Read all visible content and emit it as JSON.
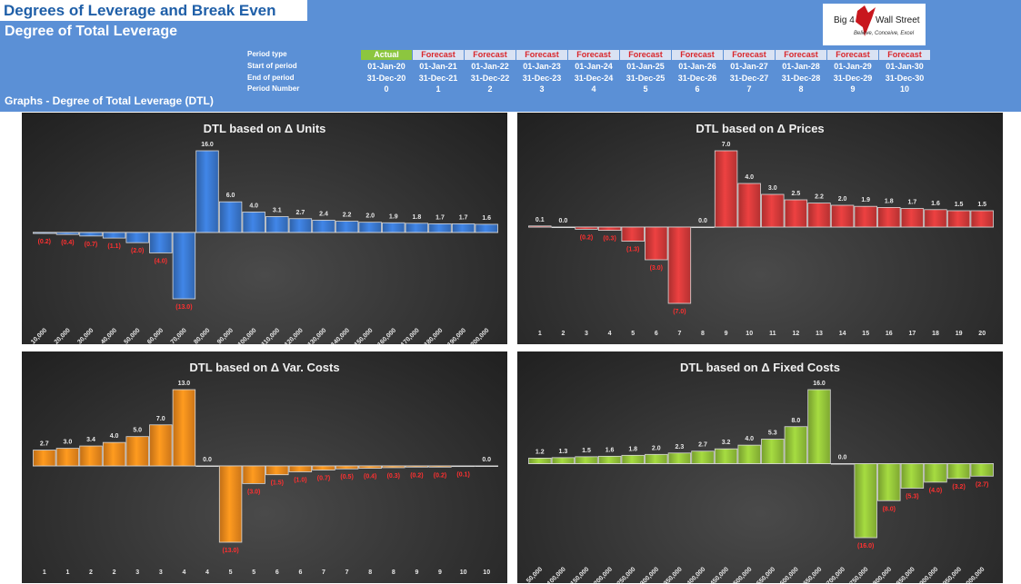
{
  "header": {
    "title": "Degrees of Leverage and Break Even",
    "subtitle": "Degree of Total Leverage",
    "section": "Graphs - Degree of Total Leverage (DTL)",
    "logo_left": "Big 4",
    "logo_right": "Wall Street",
    "logo_tagline": "Believe, Conceive, Excel"
  },
  "periods": {
    "labels": {
      "type": "Period type",
      "start": "Start of period",
      "end": "End of period",
      "number": "Period Number"
    },
    "types": [
      "Actual",
      "Forecast",
      "Forecast",
      "Forecast",
      "Forecast",
      "Forecast",
      "Forecast",
      "Forecast",
      "Forecast",
      "Forecast",
      "Forecast"
    ],
    "starts": [
      "01-Jan-20",
      "01-Jan-21",
      "01-Jan-22",
      "01-Jan-23",
      "01-Jan-24",
      "01-Jan-25",
      "01-Jan-26",
      "01-Jan-27",
      "01-Jan-28",
      "01-Jan-29",
      "01-Jan-30"
    ],
    "ends": [
      "31-Dec-20",
      "31-Dec-21",
      "31-Dec-22",
      "31-Dec-23",
      "31-Dec-24",
      "31-Dec-25",
      "31-Dec-26",
      "31-Dec-27",
      "31-Dec-28",
      "31-Dec-29",
      "31-Dec-30"
    ],
    "numbers": [
      "0",
      "1",
      "2",
      "3",
      "4",
      "5",
      "6",
      "7",
      "8",
      "9",
      "10"
    ],
    "actual_color": "#8cc63f",
    "forecast_color": "#d9e2f3",
    "forecast_text_color": "#d9262b"
  },
  "chart_data": [
    {
      "type": "bar",
      "title": "DTL based on Δ Units",
      "color": "#3a78cf",
      "categories": [
        "10,000",
        "20,000",
        "30,000",
        "40,000",
        "50,000",
        "60,000",
        "70,000",
        "80,000",
        "90,000",
        "100,000",
        "110,000",
        "120,000",
        "130,000",
        "140,000",
        "150,000",
        "160,000",
        "170,000",
        "180,000",
        "190,000",
        "200,000"
      ],
      "values": [
        -0.2,
        -0.4,
        -0.7,
        -1.1,
        -2.0,
        -4.0,
        -13.0,
        16.0,
        6.0,
        4.0,
        3.1,
        2.7,
        2.4,
        2.2,
        2.0,
        1.9,
        1.8,
        1.7,
        1.7,
        1.6
      ],
      "labels": [
        "(0.2)",
        "(0.4)",
        "(0.7)",
        "(1.1)",
        "(2.0)",
        "(4.0)",
        "(13.0)",
        "16.0",
        "6.0",
        "4.0",
        "3.1",
        "2.7",
        "2.4",
        "2.2",
        "2.0",
        "1.9",
        "1.8",
        "1.7",
        "1.7",
        "1.6"
      ],
      "rotate_ticks": true
    },
    {
      "type": "bar",
      "title": "DTL based on Δ Prices",
      "color": "#d43a3a",
      "categories": [
        "1",
        "2",
        "3",
        "4",
        "5",
        "6",
        "7",
        "8",
        "9",
        "10",
        "11",
        "12",
        "13",
        "14",
        "15",
        "16",
        "17",
        "18",
        "19",
        "20"
      ],
      "values": [
        0.1,
        0.0,
        -0.2,
        -0.3,
        -1.3,
        -3.0,
        -7.0,
        0.0,
        7.0,
        4.0,
        3.0,
        2.5,
        2.2,
        2.0,
        1.9,
        1.8,
        1.7,
        1.6,
        1.5,
        1.5
      ],
      "labels": [
        "0.1",
        "0.0",
        "(0.2)",
        "(0.3)",
        "(1.3)",
        "(3.0)",
        "(7.0)",
        "0.0",
        "7.0",
        "4.0",
        "3.0",
        "2.5",
        "2.2",
        "2.0",
        "1.9",
        "1.8",
        "1.7",
        "1.6",
        "1.5",
        "1.5"
      ],
      "rotate_ticks": false
    },
    {
      "type": "bar",
      "title": "DTL based on Δ Var. Costs",
      "color": "#f08a1c",
      "categories": [
        "1",
        "1",
        "2",
        "2",
        "3",
        "3",
        "4",
        "4",
        "5",
        "5",
        "6",
        "6",
        "7",
        "7",
        "8",
        "8",
        "9",
        "9",
        "10",
        "10"
      ],
      "values": [
        2.7,
        3.0,
        3.4,
        4.0,
        5.0,
        7.0,
        13.0,
        0.0,
        -13.0,
        -3.0,
        -1.5,
        -1.0,
        -0.7,
        -0.5,
        -0.4,
        -0.3,
        -0.2,
        -0.2,
        -0.1,
        0.0
      ],
      "labels": [
        "2.7",
        "3.0",
        "3.4",
        "4.0",
        "5.0",
        "7.0",
        "13.0",
        "0.0",
        "(13.0)",
        "(3.0)",
        "(1.5)",
        "(1.0)",
        "(0.7)",
        "(0.5)",
        "(0.4)",
        "(0.3)",
        "(0.2)",
        "(0.2)",
        "(0.1)",
        "0.0"
      ],
      "rotate_ticks": false
    },
    {
      "type": "bar",
      "title": "DTL based on Δ Fixed Costs",
      "color": "#94c43a",
      "categories": [
        "50,000",
        "100,000",
        "150,000",
        "200,000",
        "250,000",
        "300,000",
        "350,000",
        "400,000",
        "450,000",
        "500,000",
        "550,000",
        "600,000",
        "650,000",
        "700,000",
        "750,000",
        "800,000",
        "850,000",
        "900,000",
        "950,000",
        "1,000,000"
      ],
      "values": [
        1.2,
        1.3,
        1.5,
        1.6,
        1.8,
        2.0,
        2.3,
        2.7,
        3.2,
        4.0,
        5.3,
        8.0,
        16.0,
        0.0,
        -16.0,
        -8.0,
        -5.3,
        -4.0,
        -3.2,
        -2.7
      ],
      "labels": [
        "1.2",
        "1.3",
        "1.5",
        "1.6",
        "1.8",
        "2.0",
        "2.3",
        "2.7",
        "3.2",
        "4.0",
        "5.3",
        "8.0",
        "16.0",
        "0.0",
        "(16.0)",
        "(8.0)",
        "(5.3)",
        "(4.0)",
        "(3.2)",
        "(2.7)"
      ],
      "rotate_ticks": true
    }
  ]
}
